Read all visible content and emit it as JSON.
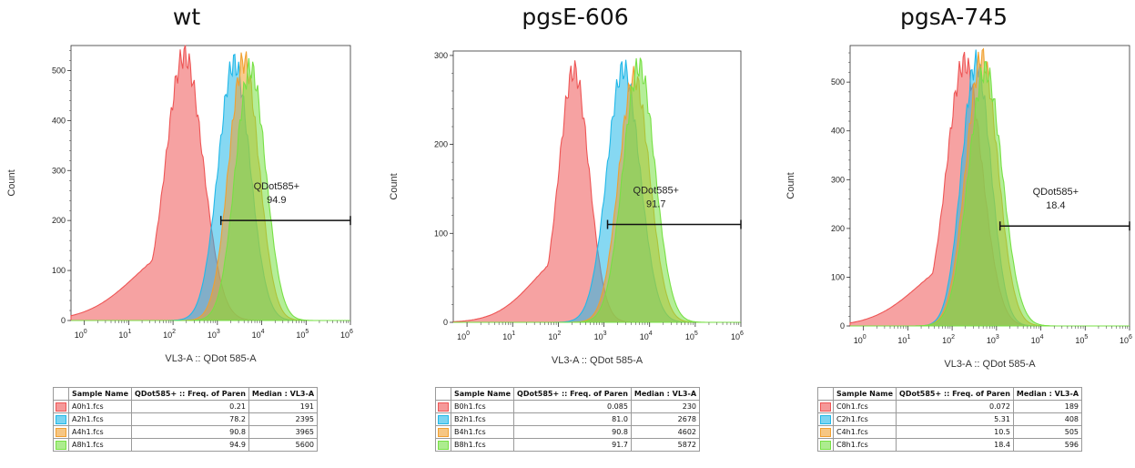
{
  "chart_data": [
    {
      "type": "histogram",
      "title": "wt",
      "xlabel": "VL3-A :: QDot 585-A",
      "ylabel": "Count",
      "x_scale": "log",
      "xlim": [
        0.5,
        1000000
      ],
      "ylim": [
        0,
        550
      ],
      "yticks": [
        0,
        100,
        200,
        300,
        400,
        500
      ],
      "x_tick_labels": [
        "10^0",
        "10^1",
        "10^2",
        "10^3",
        "10^4",
        "10^5",
        "10^6"
      ],
      "gate": {
        "name": "QDot585+",
        "value": "94.9",
        "x_start": 1200,
        "x_end": 1000000,
        "y": 200
      },
      "series": [
        {
          "name": "A0h1.fcs",
          "color": "#ee5555",
          "peak_x": 180,
          "peak_count": 530,
          "width": 0.42,
          "left_tail": 0.28,
          "freq": "0.21",
          "median": "191"
        },
        {
          "name": "A2h1.fcs",
          "color": "#22b8e8",
          "peak_x": 2395,
          "peak_count": 515,
          "width": 0.36,
          "left_tail": 0.0,
          "freq": "78.2",
          "median": "2395"
        },
        {
          "name": "A4h1.fcs",
          "color": "#f0a030",
          "peak_x": 3965,
          "peak_count": 520,
          "width": 0.34,
          "left_tail": 0.0,
          "freq": "90.8",
          "median": "3965"
        },
        {
          "name": "A8h1.fcs",
          "color": "#77e044",
          "peak_x": 5600,
          "peak_count": 505,
          "width": 0.34,
          "left_tail": 0.0,
          "freq": "94.9",
          "median": "5600"
        }
      ],
      "table_headers": [
        "Sample Name",
        "QDot585+ :: Freq. of Paren",
        "Median : VL3-A"
      ]
    },
    {
      "type": "histogram",
      "title": "pgsE-606",
      "xlabel": "VL3-A :: QDot 585-A",
      "ylabel": "Count",
      "x_scale": "log",
      "xlim": [
        0.5,
        1000000
      ],
      "ylim": [
        0,
        305
      ],
      "yticks": [
        0,
        100,
        200,
        300
      ],
      "x_tick_labels": [
        "10^0",
        "10^1",
        "10^2",
        "10^3",
        "10^4",
        "10^5",
        "10^6"
      ],
      "gate": {
        "name": "QDot585+",
        "value": "91.7",
        "x_start": 1200,
        "x_end": 1000000,
        "y": 110
      },
      "series": [
        {
          "name": "B0h1.fcs",
          "color": "#ee5555",
          "peak_x": 220,
          "peak_count": 283,
          "width": 0.33,
          "left_tail": 0.28,
          "freq": "0.085",
          "median": "230"
        },
        {
          "name": "B2h1.fcs",
          "color": "#22b8e8",
          "peak_x": 2678,
          "peak_count": 285,
          "width": 0.36,
          "left_tail": 0.0,
          "freq": "81.0",
          "median": "2678"
        },
        {
          "name": "B4h1.fcs",
          "color": "#f0a030",
          "peak_x": 4602,
          "peak_count": 275,
          "width": 0.34,
          "left_tail": 0.0,
          "freq": "90.8",
          "median": "4602"
        },
        {
          "name": "B8h1.fcs",
          "color": "#77e044",
          "peak_x": 5872,
          "peak_count": 288,
          "width": 0.35,
          "left_tail": 0.0,
          "freq": "91.7",
          "median": "5872"
        }
      ],
      "table_headers": [
        "Sample Name",
        "QDot585+ :: Freq. of Paren",
        "Median : VL3-A"
      ]
    },
    {
      "type": "histogram",
      "title": "pgsA-745",
      "xlabel": "VL3-A :: QDot 585-A",
      "ylabel": "Count",
      "x_scale": "log",
      "xlim": [
        0.5,
        1000000
      ],
      "ylim": [
        0,
        575
      ],
      "yticks": [
        0,
        100,
        200,
        300,
        400,
        500
      ],
      "x_tick_labels": [
        "10^0",
        "10^1",
        "10^2",
        "10^3",
        "10^4",
        "10^5",
        "10^6"
      ],
      "gate": {
        "name": "QDot585+",
        "value": "18.4",
        "x_start": 1200,
        "x_end": 1000000,
        "y": 205
      },
      "series": [
        {
          "name": "C0h1.fcs",
          "color": "#ee5555",
          "peak_x": 189,
          "peak_count": 540,
          "width": 0.4,
          "left_tail": 0.25,
          "freq": "0.072",
          "median": "189"
        },
        {
          "name": "C2h1.fcs",
          "color": "#22b8e8",
          "peak_x": 350,
          "peak_count": 540,
          "width": 0.33,
          "left_tail": 0.0,
          "freq": "5.31",
          "median": "408"
        },
        {
          "name": "C4h1.fcs",
          "color": "#f0a030",
          "peak_x": 470,
          "peak_count": 550,
          "width": 0.36,
          "left_tail": 0.0,
          "freq": "10.5",
          "median": "505"
        },
        {
          "name": "C8h1.fcs",
          "color": "#77e044",
          "peak_x": 560,
          "peak_count": 525,
          "width": 0.38,
          "left_tail": 0.0,
          "freq": "18.4",
          "median": "596"
        }
      ],
      "table_headers": [
        "Sample Name",
        "QDot585+ :: Freq. of Paren",
        "Median : VL3-A"
      ]
    }
  ]
}
